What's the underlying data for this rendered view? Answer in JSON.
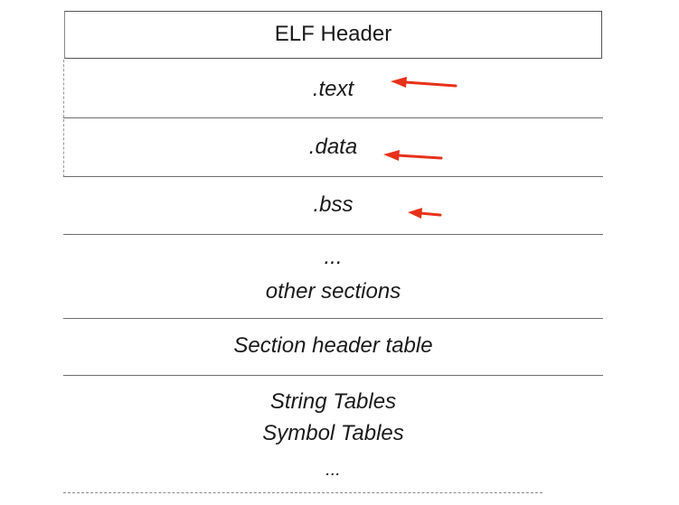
{
  "sections": {
    "elf_header": "ELF Header",
    "text": ".text",
    "data": ".data",
    "bss": ".bss",
    "ellipsis": "...",
    "other_sections": "other sections",
    "section_header_table": "Section header table",
    "string_tables": "String Tables",
    "symbol_tables": "Symbol Tables",
    "ellipsis_bottom": "..."
  },
  "colors": {
    "arrow": "#e8311a",
    "line": "#6e6e6e"
  }
}
